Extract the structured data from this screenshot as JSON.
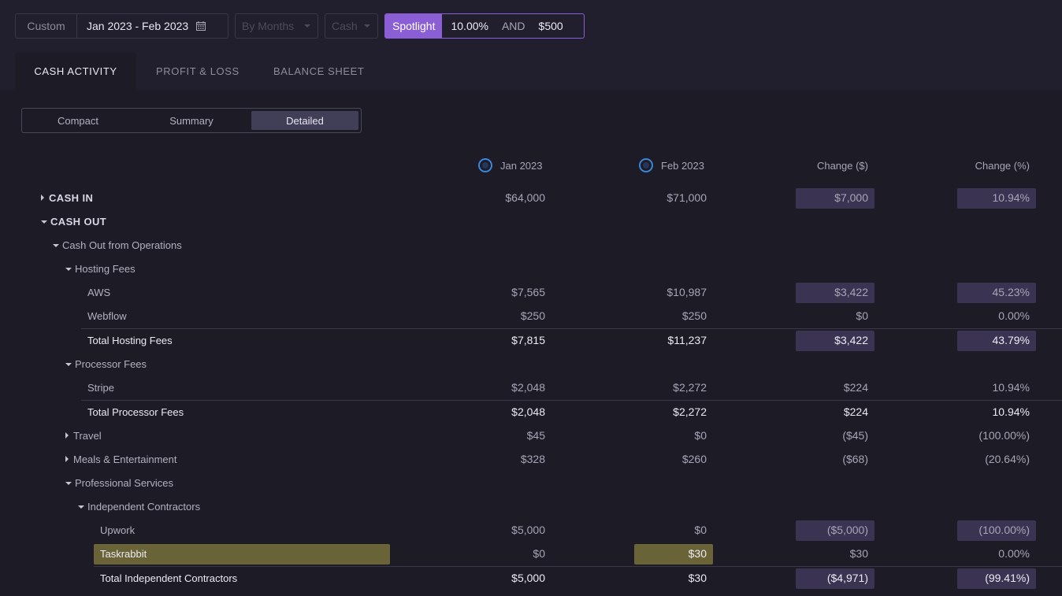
{
  "filters": {
    "custom_label": "Custom",
    "date_range": "Jan 2023 - Feb 2023",
    "period": "By Months",
    "basis": "Cash",
    "spotlight_label": "Spotlight",
    "spotlight_pct": "10.00%",
    "spotlight_and": "AND",
    "spotlight_amount": "$500"
  },
  "tabs": [
    "CASH ACTIVITY",
    "PROFIT & LOSS",
    "BALANCE SHEET"
  ],
  "views": [
    "Compact",
    "Summary",
    "Detailed"
  ],
  "columns": [
    "Jan 2023",
    "Feb 2023",
    "Change ($)",
    "Change (%)"
  ],
  "rows": [
    {
      "label": "CASH IN",
      "jan": "$64,000",
      "feb": "$71,000",
      "chg": "$7,000",
      "pct": "10.94%"
    },
    {
      "label": "CASH OUT"
    },
    {
      "label": "Cash Out from Operations"
    },
    {
      "label": "Hosting Fees"
    },
    {
      "label": "AWS",
      "jan": "$7,565",
      "feb": "$10,987",
      "chg": "$3,422",
      "pct": "45.23%"
    },
    {
      "label": "Webflow",
      "jan": "$250",
      "feb": "$250",
      "chg": "$0",
      "pct": "0.00%"
    },
    {
      "label": "Total Hosting Fees",
      "jan": "$7,815",
      "feb": "$11,237",
      "chg": "$3,422",
      "pct": "43.79%"
    },
    {
      "label": "Processor Fees"
    },
    {
      "label": "Stripe",
      "jan": "$2,048",
      "feb": "$2,272",
      "chg": "$224",
      "pct": "10.94%"
    },
    {
      "label": "Total Processor Fees",
      "jan": "$2,048",
      "feb": "$2,272",
      "chg": "$224",
      "pct": "10.94%"
    },
    {
      "label": "Travel",
      "jan": "$45",
      "feb": "$0",
      "chg": "($45)",
      "pct": "(100.00%)"
    },
    {
      "label": "Meals & Entertainment",
      "jan": "$328",
      "feb": "$260",
      "chg": "($68)",
      "pct": "(20.64%)"
    },
    {
      "label": "Professional Services"
    },
    {
      "label": "Independent Contractors"
    },
    {
      "label": "Upwork",
      "jan": "$5,000",
      "feb": "$0",
      "chg": "($5,000)",
      "pct": "(100.00%)"
    },
    {
      "label": "Taskrabbit",
      "jan": "$0",
      "feb": "$30",
      "chg": "$30",
      "pct": "0.00%"
    },
    {
      "label": "Total Independent Contractors",
      "jan": "$5,000",
      "feb": "$30",
      "chg": "($4,971)",
      "pct": "(99.41%)"
    }
  ]
}
